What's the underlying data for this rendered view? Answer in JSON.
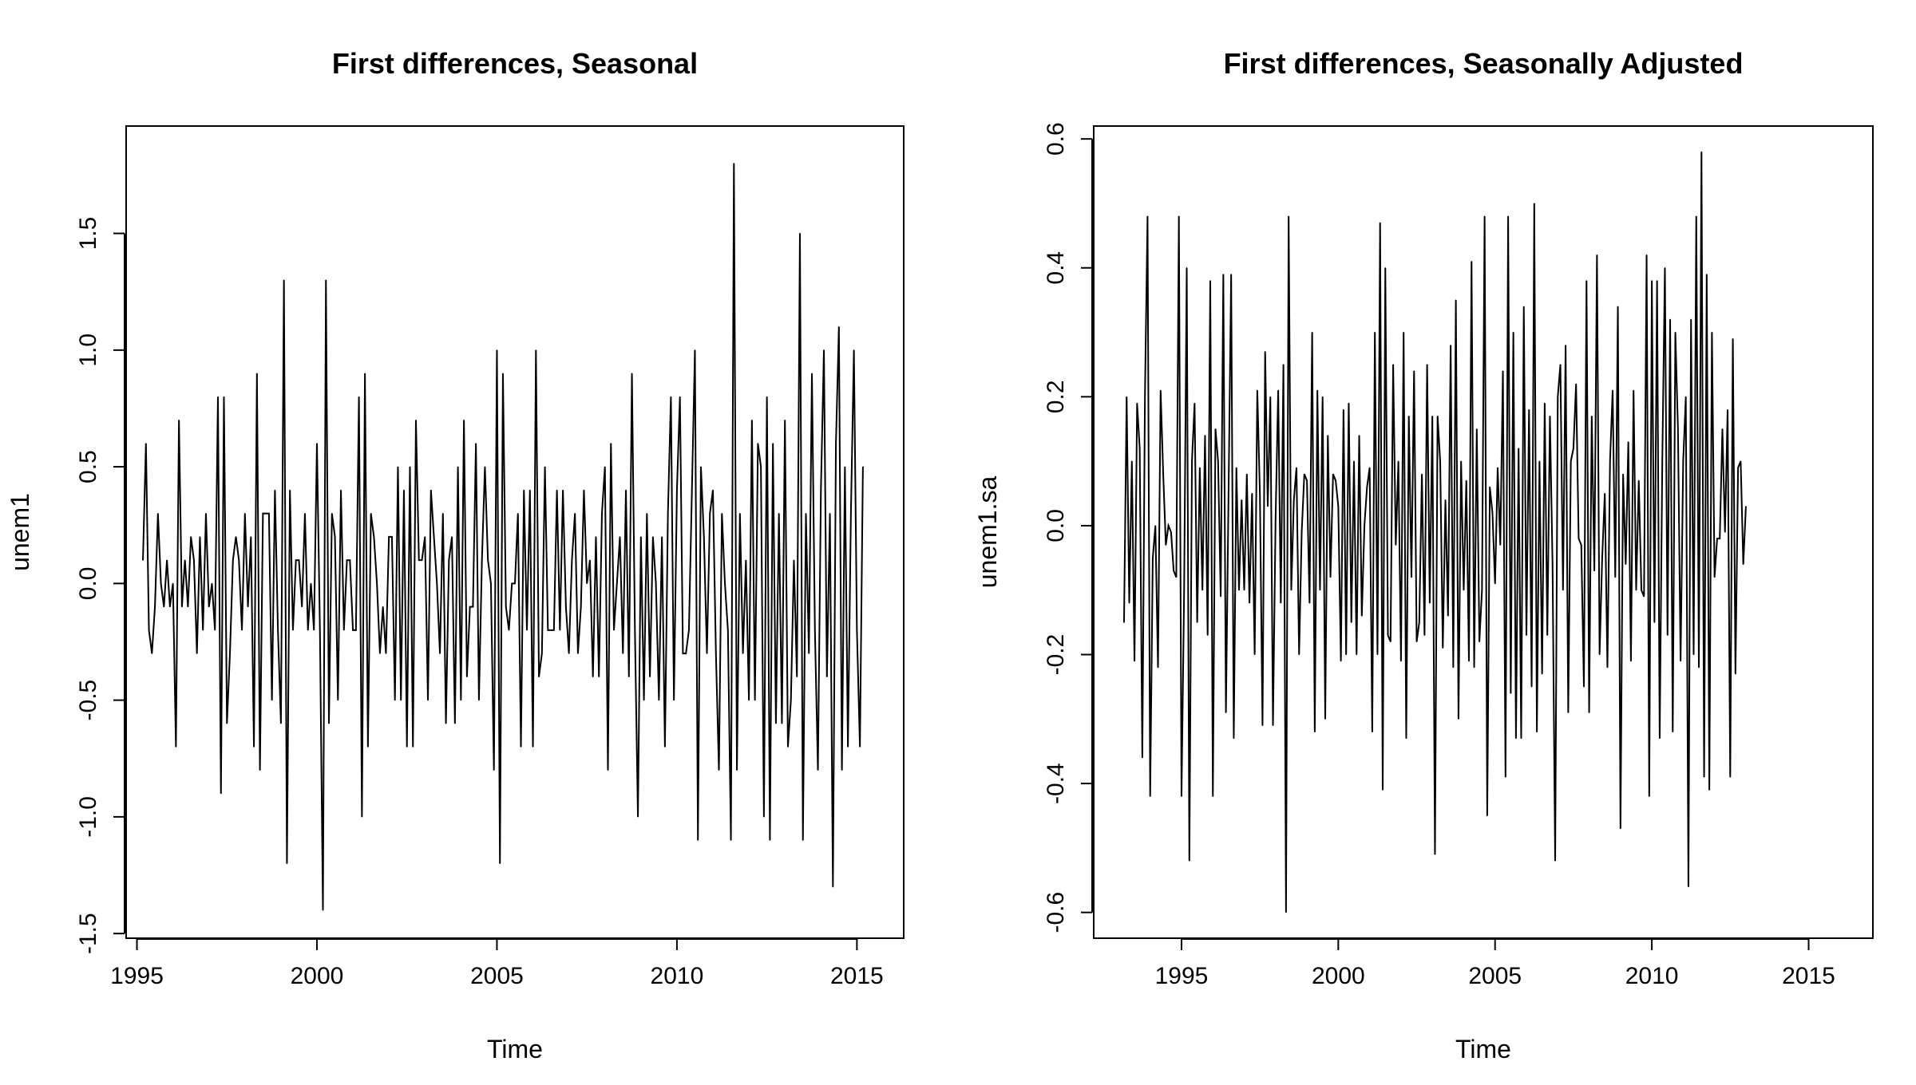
{
  "chart_data": [
    {
      "type": "line",
      "title": "First differences, Seasonal",
      "xlabel": "Time",
      "ylabel": "unem1",
      "xlim": [
        1994.7,
        2016.3
      ],
      "ylim": [
        -1.52,
        1.96
      ],
      "xticks": [
        1995,
        2000,
        2005,
        2010,
        2015
      ],
      "xtick_labels": [
        "1995",
        "2000",
        "2005",
        "2010",
        "2015"
      ],
      "yticks": [
        -1.5,
        -1.0,
        -0.5,
        0.0,
        0.5,
        1.0,
        1.5
      ],
      "ytick_labels": [
        "-1.5",
        "-1.0",
        "-0.5",
        "0.0",
        "0.5",
        "1.0",
        "1.5"
      ],
      "grid": false,
      "color": "#000000",
      "series": [
        {
          "x_start": 1995.1667,
          "x_step": 0.0833333,
          "values": [
            0.1,
            0.6,
            -0.2,
            -0.3,
            -0.1,
            0.3,
            0.0,
            -0.1,
            0.1,
            -0.1,
            0.0,
            -0.7,
            0.7,
            -0.1,
            0.1,
            -0.1,
            0.2,
            0.1,
            -0.3,
            0.2,
            -0.2,
            0.3,
            -0.1,
            0.0,
            -0.2,
            0.8,
            -0.9,
            0.8,
            -0.6,
            -0.3,
            0.1,
            0.2,
            0.1,
            -0.2,
            0.3,
            -0.1,
            0.2,
            -0.7,
            0.9,
            -0.8,
            0.3,
            0.3,
            0.3,
            -0.5,
            0.4,
            -0.2,
            -0.6,
            1.3,
            -1.2,
            0.4,
            -0.2,
            0.1,
            0.1,
            -0.1,
            0.3,
            -0.2,
            0.0,
            -0.2,
            0.6,
            -0.2,
            -1.4,
            1.3,
            -0.6,
            0.3,
            0.2,
            -0.5,
            0.4,
            -0.2,
            0.1,
            0.1,
            -0.2,
            -0.2,
            0.8,
            -1.0,
            0.9,
            -0.7,
            0.3,
            0.2,
            0.0,
            -0.3,
            -0.1,
            -0.3,
            0.2,
            0.2,
            -0.5,
            0.5,
            -0.5,
            0.4,
            -0.7,
            0.5,
            -0.7,
            0.7,
            0.1,
            0.1,
            0.2,
            -0.5,
            0.4,
            0.2,
            0.0,
            -0.3,
            0.3,
            -0.6,
            0.1,
            0.2,
            -0.6,
            0.5,
            -0.5,
            0.7,
            -0.4,
            -0.1,
            -0.1,
            0.6,
            -0.5,
            0.1,
            0.5,
            0.1,
            0.0,
            -0.8,
            1.0,
            -1.2,
            0.9,
            -0.1,
            -0.2,
            0.0,
            0.0,
            0.3,
            -0.7,
            0.4,
            -0.2,
            0.4,
            -0.7,
            1.0,
            -0.4,
            -0.3,
            0.5,
            -0.2,
            -0.2,
            -0.2,
            0.4,
            -0.2,
            0.4,
            -0.1,
            -0.3,
            0.1,
            0.3,
            -0.3,
            -0.1,
            0.4,
            0.0,
            0.1,
            -0.4,
            0.2,
            -0.4,
            0.3,
            0.5,
            -0.8,
            0.6,
            -0.2,
            0.0,
            0.2,
            -0.3,
            0.4,
            -0.4,
            0.9,
            -0.2,
            -1.0,
            0.2,
            -0.5,
            0.3,
            -0.4,
            0.2,
            0.0,
            -0.5,
            0.2,
            -0.7,
            0.3,
            0.8,
            -0.5,
            0.4,
            0.8,
            -0.3,
            -0.3,
            -0.2,
            0.4,
            1.0,
            -1.1,
            0.5,
            0.2,
            -0.3,
            0.3,
            0.4,
            -0.3,
            -0.8,
            0.3,
            0.0,
            -0.2,
            -1.1,
            1.8,
            -0.8,
            0.3,
            -0.3,
            0.1,
            -0.5,
            0.7,
            -0.5,
            0.6,
            0.5,
            -1.0,
            0.8,
            -1.1,
            0.6,
            -0.6,
            0.3,
            -0.6,
            0.7,
            -0.7,
            -0.5,
            0.1,
            -0.4,
            1.5,
            -1.1,
            0.3,
            -0.3,
            0.9,
            -0.2,
            -0.8,
            0.4,
            1.0,
            -0.4,
            0.3,
            -1.3,
            0.6,
            1.1,
            -0.8,
            0.5,
            -0.7,
            0.3,
            1.0,
            -0.2,
            -0.7,
            0.5
          ]
        }
      ]
    },
    {
      "type": "line",
      "title": "First differences, Seasonally Adjusted",
      "xlabel": "Time",
      "ylabel": "unem1.sa",
      "xlim": [
        1992.2,
        2017.05
      ],
      "ylim": [
        -0.64,
        0.62
      ],
      "xticks": [
        1995,
        2000,
        2005,
        2010,
        2015
      ],
      "xtick_labels": [
        "1995",
        "2000",
        "2005",
        "2010",
        "2015"
      ],
      "yticks": [
        -0.6,
        -0.4,
        -0.2,
        0.0,
        0.2,
        0.4,
        0.6
      ],
      "ytick_labels": [
        "-0.6",
        "-0.4",
        "-0.2",
        "0.0",
        "0.2",
        "0.4",
        "0.6"
      ],
      "grid": false,
      "color": "#000000",
      "series": [
        {
          "x_start": 1993.1667,
          "x_step": 0.0833333,
          "values": [
            -0.15,
            0.2,
            -0.12,
            0.1,
            -0.21,
            0.19,
            0.12,
            -0.36,
            0.2,
            0.48,
            -0.42,
            -0.05,
            0.0,
            -0.22,
            0.21,
            0.08,
            -0.03,
            0.0,
            -0.01,
            -0.07,
            -0.08,
            0.48,
            -0.42,
            -0.1,
            0.4,
            -0.52,
            0.1,
            0.19,
            -0.15,
            0.09,
            -0.1,
            0.14,
            -0.17,
            0.38,
            -0.42,
            0.15,
            0.1,
            -0.11,
            0.39,
            -0.29,
            0.05,
            0.39,
            -0.33,
            0.09,
            -0.1,
            0.04,
            -0.1,
            0.08,
            -0.12,
            0.05,
            -0.2,
            0.21,
            0.05,
            -0.31,
            0.27,
            0.03,
            0.2,
            -0.31,
            0.01,
            0.21,
            -0.12,
            0.25,
            -0.6,
            0.48,
            -0.1,
            0.04,
            0.09,
            -0.2,
            -0.01,
            0.08,
            0.07,
            -0.12,
            0.3,
            -0.32,
            0.21,
            -0.1,
            0.2,
            -0.3,
            0.14,
            -0.08,
            0.08,
            0.07,
            0.03,
            -0.21,
            0.18,
            -0.2,
            0.19,
            -0.15,
            0.1,
            -0.2,
            0.14,
            -0.14,
            0.0,
            0.06,
            0.09,
            -0.32,
            0.3,
            -0.2,
            0.47,
            -0.41,
            0.4,
            -0.17,
            -0.18,
            0.25,
            -0.03,
            0.1,
            -0.21,
            0.3,
            -0.33,
            0.17,
            -0.08,
            0.24,
            -0.18,
            -0.15,
            0.08,
            -0.17,
            0.25,
            -0.12,
            0.17,
            -0.51,
            0.17,
            0.1,
            -0.19,
            0.04,
            -0.14,
            0.28,
            -0.22,
            0.35,
            -0.3,
            0.1,
            -0.1,
            0.07,
            -0.21,
            0.41,
            -0.22,
            0.15,
            -0.18,
            -0.1,
            0.48,
            -0.45,
            0.06,
            0.02,
            -0.09,
            0.09,
            -0.03,
            0.24,
            -0.39,
            0.48,
            -0.26,
            0.3,
            -0.33,
            0.12,
            -0.33,
            0.34,
            -0.17,
            0.18,
            -0.25,
            0.5,
            -0.32,
            0.1,
            -0.23,
            0.19,
            -0.17,
            0.17,
            -0.06,
            -0.52,
            0.2,
            0.25,
            -0.1,
            0.28,
            -0.29,
            0.1,
            0.12,
            0.22,
            -0.02,
            -0.03,
            -0.25,
            0.38,
            -0.29,
            0.17,
            -0.07,
            0.42,
            -0.2,
            -0.05,
            0.05,
            -0.22,
            0.1,
            0.21,
            -0.08,
            0.34,
            -0.47,
            0.08,
            -0.06,
            0.13,
            -0.21,
            0.21,
            -0.1,
            0.07,
            -0.1,
            -0.11,
            0.42,
            -0.42,
            0.38,
            -0.15,
            0.38,
            -0.33,
            0.1,
            0.4,
            -0.17,
            0.32,
            -0.32,
            0.3,
            0.15,
            -0.21,
            0.1,
            0.2,
            -0.56,
            0.32,
            -0.2,
            0.48,
            -0.22,
            0.58,
            -0.39,
            0.39,
            -0.41,
            0.3,
            -0.08,
            -0.02,
            -0.02,
            0.15,
            -0.01,
            0.18,
            -0.39,
            0.29,
            -0.23,
            0.09,
            0.1,
            -0.06,
            0.03
          ]
        }
      ]
    }
  ]
}
